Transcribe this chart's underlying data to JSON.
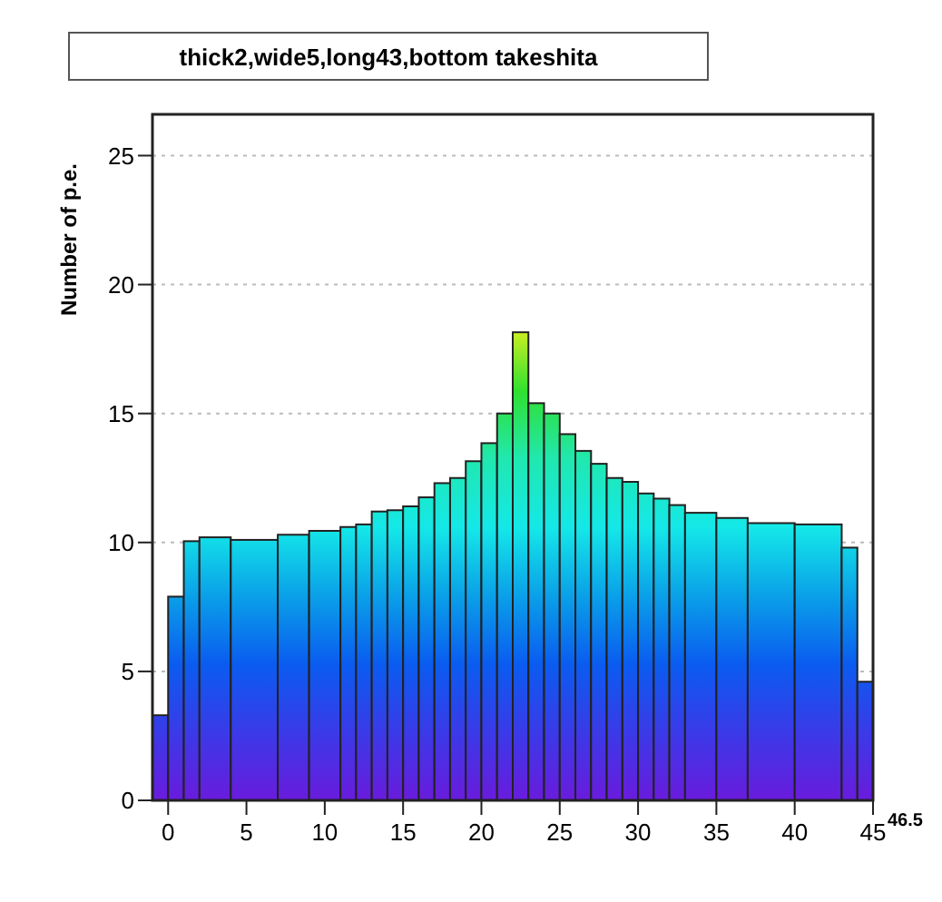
{
  "chart_data": {
    "type": "histogram",
    "title": "thick2,wide5,long43,bottom takeshita",
    "ylabel": "Number of p.e.",
    "bins": [
      -1,
      0,
      1,
      2,
      4,
      7,
      9,
      11,
      12,
      13,
      14,
      15,
      16,
      17,
      18,
      19,
      20,
      21,
      22,
      23,
      24,
      25,
      26,
      27,
      28,
      29,
      30,
      31,
      32,
      33,
      35,
      37,
      40,
      43,
      44,
      45
    ],
    "values": [
      3.3,
      7.9,
      10.05,
      10.2,
      10.1,
      10.3,
      10.45,
      10.6,
      10.7,
      11.2,
      11.25,
      11.4,
      11.75,
      12.3,
      12.5,
      13.15,
      13.85,
      15.0,
      18.15,
      15.4,
      15.0,
      14.2,
      13.55,
      13.05,
      12.5,
      12.35,
      11.9,
      11.7,
      11.45,
      11.15,
      10.95,
      10.75,
      10.7,
      9.8,
      4.6
    ],
    "xlim": [
      -1,
      45
    ],
    "xticks": [
      0,
      5,
      10,
      15,
      20,
      25,
      30,
      35,
      40,
      45
    ],
    "ylim": [
      0,
      26.6
    ],
    "yticks": [
      0,
      5,
      10,
      15,
      20,
      25
    ],
    "grid": "y",
    "annotations": [
      "46.5"
    ]
  }
}
